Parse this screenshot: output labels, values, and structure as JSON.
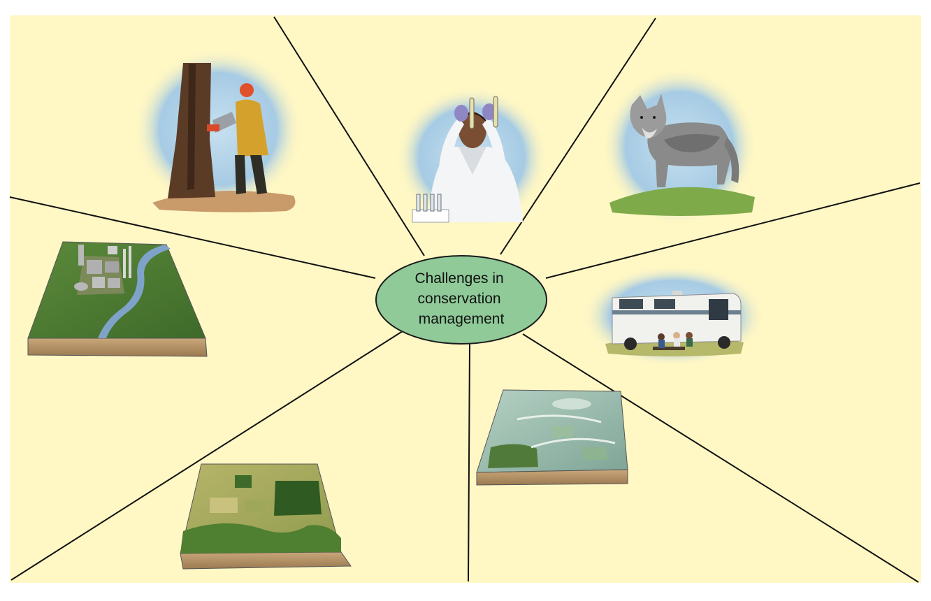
{
  "diagram": {
    "center_label_lines": [
      "Challenges in",
      "conservation",
      "management"
    ],
    "colors": {
      "background": "#fff7c4",
      "hub_fill": "#8fca98",
      "hub_stroke": "#1a1a1a",
      "divider": "#111111",
      "sky": "#a9cde6"
    },
    "illustrations": [
      "logger-cutting-tree",
      "scientist-with-test-tubes",
      "gray-wolf",
      "recreational-vehicle-campers",
      "farmland-and-wetland-block",
      "forest-fragments-farmland-block",
      "industrial-site-river-block"
    ]
  }
}
